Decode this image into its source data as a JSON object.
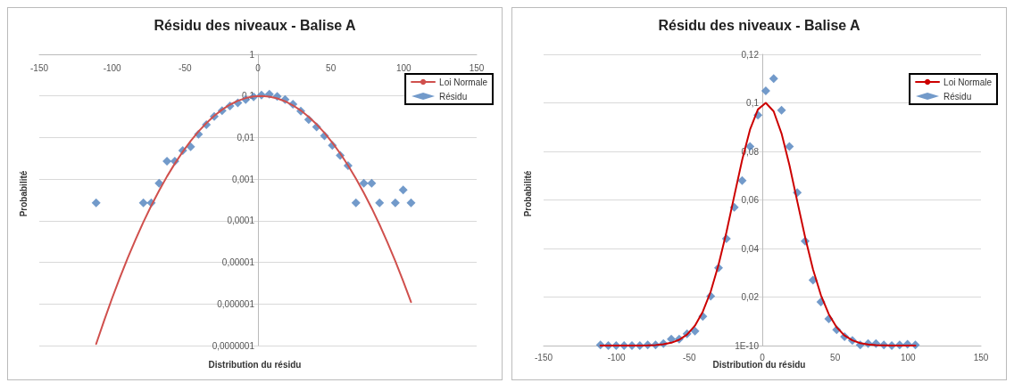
{
  "chart_data": [
    {
      "type": "scatter",
      "title": "Résidu des niveaux - Balise A",
      "xlabel": "Distribution du résidu",
      "ylabel": "Probabilité",
      "x": [
        -111,
        -105.6,
        -100.2,
        -94.8,
        -89.4,
        -84,
        -78.6,
        -73.2,
        -67.8,
        -62.4,
        -57,
        -51.6,
        -46.2,
        -40.8,
        -35.4,
        -30,
        -24.6,
        -19.2,
        -13.8,
        -8.4,
        -3,
        2.4,
        7.8,
        13.2,
        18.6,
        24,
        29.4,
        34.8,
        40.2,
        45.6,
        51,
        56.4,
        61.8,
        67.2,
        72.6,
        78,
        83.4,
        88.8,
        94.2,
        99.6,
        105
      ],
      "log": "y",
      "grid": "y",
      "legend": "top right",
      "xlim": [
        -150,
        150
      ],
      "xticks": [
        -150,
        -100,
        -50,
        0,
        50,
        100,
        150
      ],
      "ylim": [
        1e-07,
        1
      ],
      "yticks": [
        {
          "value": 1e-07,
          "label": "0,0000001"
        },
        {
          "value": 1e-06,
          "label": "0,000001"
        },
        {
          "value": 1e-05,
          "label": "0,00001"
        },
        {
          "value": 0.0001,
          "label": "0,0001"
        },
        {
          "value": 0.001,
          "label": "0,001"
        },
        {
          "value": 0.01,
          "label": "0,01"
        },
        {
          "value": 0.1,
          "label": "0,1"
        },
        1
      ],
      "series": [
        {
          "name": "Loi Normale",
          "type": "line",
          "marker": "none",
          "color": "#d0504d",
          "values": [
            1.09e-07,
            3.9e-07,
            1.33e-06,
            4.2e-06,
            1.26e-05,
            3.5e-05,
            9.3e-05,
            0.000229,
            0.00053,
            0.00116,
            0.00237,
            0.00455,
            0.0082,
            0.01395,
            0.0222,
            0.0333,
            0.0467,
            0.0617,
            0.0765,
            0.089,
            0.0973,
            0.1,
            0.0965,
            0.0874,
            0.0744,
            0.0594,
            0.0446,
            0.0314,
            0.0208,
            0.01295,
            0.00756,
            0.00415,
            0.00214,
            0.00103,
            0.00047,
            0.000201,
            8.05e-05,
            3.03e-05,
            1.07e-05,
            3.56e-06,
            1.11e-06
          ]
        },
        {
          "name": "Résidu",
          "marker": "diamond",
          "color": "#4f81bd",
          "values": [
            0.00027,
            null,
            null,
            null,
            null,
            null,
            0.00027,
            0.00027,
            0.0008,
            0.0027,
            0.0027,
            0.0049,
            0.006,
            0.012,
            0.0204,
            0.032,
            0.044,
            0.057,
            0.068,
            0.082,
            0.095,
            0.105,
            0.11,
            0.097,
            0.082,
            0.063,
            0.043,
            0.027,
            0.018,
            0.011,
            0.0065,
            0.0037,
            0.0021,
            0.00027,
            0.0008,
            0.0008,
            0.00027,
            null,
            0.00027,
            0.00055,
            0.00027
          ]
        }
      ]
    },
    {
      "type": "scatter",
      "title": "Résidu des niveaux - Balise A",
      "xlabel": "Distribution du résidu",
      "ylabel": "Probabilité",
      "x": [
        -111,
        -105.6,
        -100.2,
        -94.8,
        -89.4,
        -84,
        -78.6,
        -73.2,
        -67.8,
        -62.4,
        -57,
        -51.6,
        -46.2,
        -40.8,
        -35.4,
        -30,
        -24.6,
        -19.2,
        -13.8,
        -8.4,
        -3,
        2.4,
        7.8,
        13.2,
        18.6,
        24,
        29.4,
        34.8,
        40.2,
        45.6,
        51,
        56.4,
        61.8,
        67.2,
        72.6,
        78,
        83.4,
        88.8,
        94.2,
        99.6,
        105
      ],
      "grid": "y",
      "legend": "top right",
      "xlim": [
        -150,
        150
      ],
      "xticks": [
        -150,
        -100,
        -50,
        0,
        50,
        100,
        150
      ],
      "ylim": [
        1e-10,
        0.12
      ],
      "yticks": [
        {
          "value": 1e-10,
          "label": "1E-10"
        },
        {
          "value": 0.02,
          "label": "0,02"
        },
        {
          "value": 0.04,
          "label": "0,04"
        },
        {
          "value": 0.06,
          "label": "0,06"
        },
        {
          "value": 0.08,
          "label": "0,08"
        },
        {
          "value": 0.1,
          "label": "0,1"
        },
        {
          "value": 0.12,
          "label": "0,12"
        }
      ],
      "series": [
        {
          "name": "Loi Normale",
          "type": "line",
          "marker": "none",
          "color": "#cc0000",
          "values": [
            1.09e-07,
            3.9e-07,
            1.33e-06,
            4.2e-06,
            1.26e-05,
            3.5e-05,
            9.3e-05,
            0.000229,
            0.00053,
            0.00116,
            0.00237,
            0.00455,
            0.0082,
            0.01395,
            0.0222,
            0.0333,
            0.0467,
            0.0617,
            0.0765,
            0.089,
            0.0973,
            0.1,
            0.0965,
            0.0874,
            0.0744,
            0.0594,
            0.0446,
            0.0314,
            0.0208,
            0.01295,
            0.00756,
            0.00415,
            0.00214,
            0.00103,
            0.00047,
            0.000201,
            8.05e-05,
            3.03e-05,
            1.07e-05,
            3.56e-06,
            1.11e-06
          ]
        },
        {
          "name": "Résidu",
          "marker": "diamond",
          "color": "#4f81bd",
          "values": [
            0.00027,
            1e-10,
            1e-10,
            1e-10,
            1e-10,
            1e-10,
            0.00027,
            0.00027,
            0.0008,
            0.0027,
            0.0027,
            0.0049,
            0.006,
            0.012,
            0.0204,
            0.032,
            0.044,
            0.057,
            0.068,
            0.082,
            0.095,
            0.105,
            0.11,
            0.097,
            0.082,
            0.063,
            0.043,
            0.027,
            0.018,
            0.011,
            0.0065,
            0.0037,
            0.0021,
            0.00027,
            0.0008,
            0.0008,
            0.00027,
            1e-10,
            0.00027,
            0.00055,
            0.00027
          ]
        }
      ]
    }
  ]
}
